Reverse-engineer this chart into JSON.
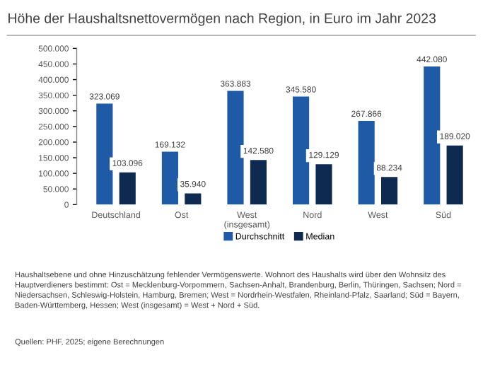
{
  "chart_data": {
    "type": "bar",
    "title": "Höhe der Haushaltsnettovermögen nach Region, in Euro im Jahr 2023",
    "categories": [
      "Deutschland",
      "Ost",
      "West\n(insgesamt)",
      "Nord",
      "West",
      "Süd"
    ],
    "series": [
      {
        "name": "Durchschnitt",
        "color": "#1f5aa6",
        "values": [
          323069,
          169132,
          363883,
          345580,
          267866,
          442080
        ],
        "value_labels": [
          "323.069",
          "169.132",
          "363.883",
          "345.580",
          "267.866",
          "442.080"
        ]
      },
      {
        "name": "Median",
        "color": "#0e2a50",
        "values": [
          103096,
          35940,
          142580,
          129129,
          88234,
          189020
        ],
        "value_labels": [
          "103.096",
          "35.940",
          "142.580",
          "129.129",
          "88.234",
          "189.020"
        ]
      }
    ],
    "ylim": [
      0,
      500000
    ],
    "yticks": [
      {
        "value": 0,
        "label": "0"
      },
      {
        "value": 50000,
        "label": "50.000"
      },
      {
        "value": 100000,
        "label": "100.000"
      },
      {
        "value": 150000,
        "label": "150.000"
      },
      {
        "value": 200000,
        "label": "200.000"
      },
      {
        "value": 250000,
        "label": "250.000"
      },
      {
        "value": 300000,
        "label": "300.000"
      },
      {
        "value": 350000,
        "label": "350.000"
      },
      {
        "value": 400000,
        "label": "400.000"
      },
      {
        "value": 450000,
        "label": "450.000"
      },
      {
        "value": 500000,
        "label": "500.000"
      }
    ],
    "grid": false,
    "legend": "bottom",
    "annotations": [
      "Haushaltsebene und ohne Hinzuschätzung fehlender Vermögenswerte. Wohnort des Haushalts wird über den Wohnsitz des Hauptverdieners bestimmt: Ost = Mecklenburg-Vorpommern, Sachsen-Anhalt, Brandenburg, Berlin, Thüringen, Sachsen; Nord = Niedersachsen, Schleswig-Holstein, Hamburg, Bremen; West = Nordrhein-Westfalen, Rheinland-Pfalz, Saarland; Süd = Bayern, Baden-Württemberg, Hessen; West (insgesamt) = West + Nord + Süd.",
      "Quellen: PHF, 2025; eigene Berechnungen"
    ]
  }
}
